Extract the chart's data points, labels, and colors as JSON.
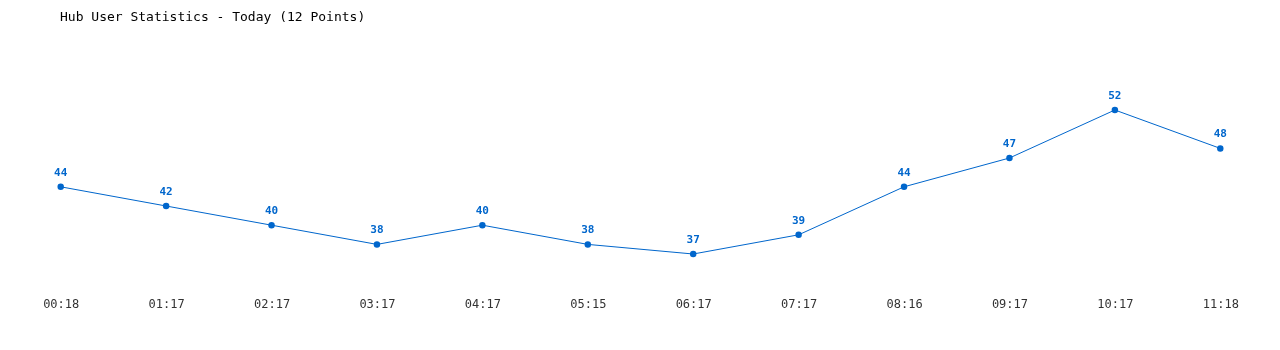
{
  "chart_data": {
    "type": "line",
    "title": "Hub User Statistics - Today (12 Points)",
    "categories": [
      "00:18",
      "01:17",
      "02:17",
      "03:17",
      "04:17",
      "05:15",
      "06:17",
      "07:17",
      "08:16",
      "09:17",
      "10:17",
      "11:18"
    ],
    "series": [
      {
        "color": "#0066cc",
        "values": [
          44,
          42,
          40,
          38,
          40,
          38,
          37,
          39,
          44,
          47,
          52,
          48
        ]
      }
    ],
    "data_labels": true,
    "marker": "circle",
    "grid": false,
    "tick_labels": "x"
  }
}
